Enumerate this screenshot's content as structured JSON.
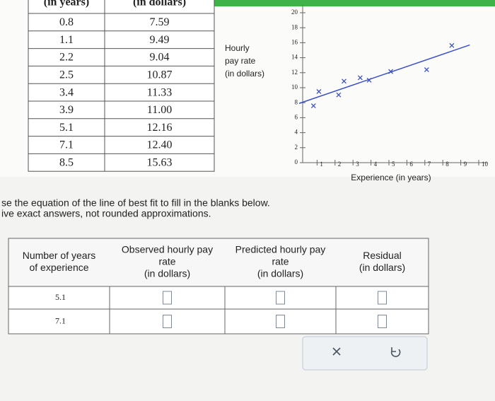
{
  "data_table": {
    "headers": [
      "(in years)",
      "(in dollars)"
    ],
    "rows": [
      [
        "0.8",
        "7.59"
      ],
      [
        "1.1",
        "9.49"
      ],
      [
        "2.2",
        "9.04"
      ],
      [
        "2.5",
        "10.87"
      ],
      [
        "3.4",
        "11.33"
      ],
      [
        "3.9",
        "11.00"
      ],
      [
        "5.1",
        "12.16"
      ],
      [
        "7.1",
        "12.40"
      ],
      [
        "8.5",
        "15.63"
      ]
    ]
  },
  "chart_data": {
    "type": "scatter",
    "y_label": [
      "Hourly",
      "pay rate",
      "(in dollars)"
    ],
    "x_label": "Experience (in years)",
    "x": [
      0.8,
      1.1,
      2.2,
      2.5,
      3.4,
      3.9,
      5.1,
      7.1,
      8.5
    ],
    "values": [
      7.59,
      9.49,
      9.04,
      10.87,
      11.33,
      11.0,
      12.16,
      12.4,
      15.63
    ],
    "color": "#3b4fc4",
    "fit_line": {
      "x": [
        0,
        9.5
      ],
      "y": [
        7.9,
        15.7
      ]
    },
    "xlim": [
      0,
      10.5
    ],
    "ylim": [
      0,
      21
    ],
    "xticks": [
      1,
      2,
      3,
      4,
      5,
      6,
      7,
      8,
      9,
      10
    ],
    "yticks": [
      0,
      2,
      4,
      6,
      8,
      10,
      12,
      14,
      16,
      18,
      20
    ]
  },
  "instructions": [
    "se the equation of the line of best fit to fill in the blanks below.",
    "ive exact answers, not rounded approximations."
  ],
  "answer_table": {
    "headers": [
      [
        "Number of years",
        "of experience"
      ],
      [
        "Observed hourly pay",
        "rate",
        "(in dollars)"
      ],
      [
        "Predicted hourly pay",
        "rate",
        "(in dollars)"
      ],
      [
        "Residual",
        "(in dollars)"
      ]
    ],
    "rows": [
      "5.1",
      "7.1"
    ]
  }
}
